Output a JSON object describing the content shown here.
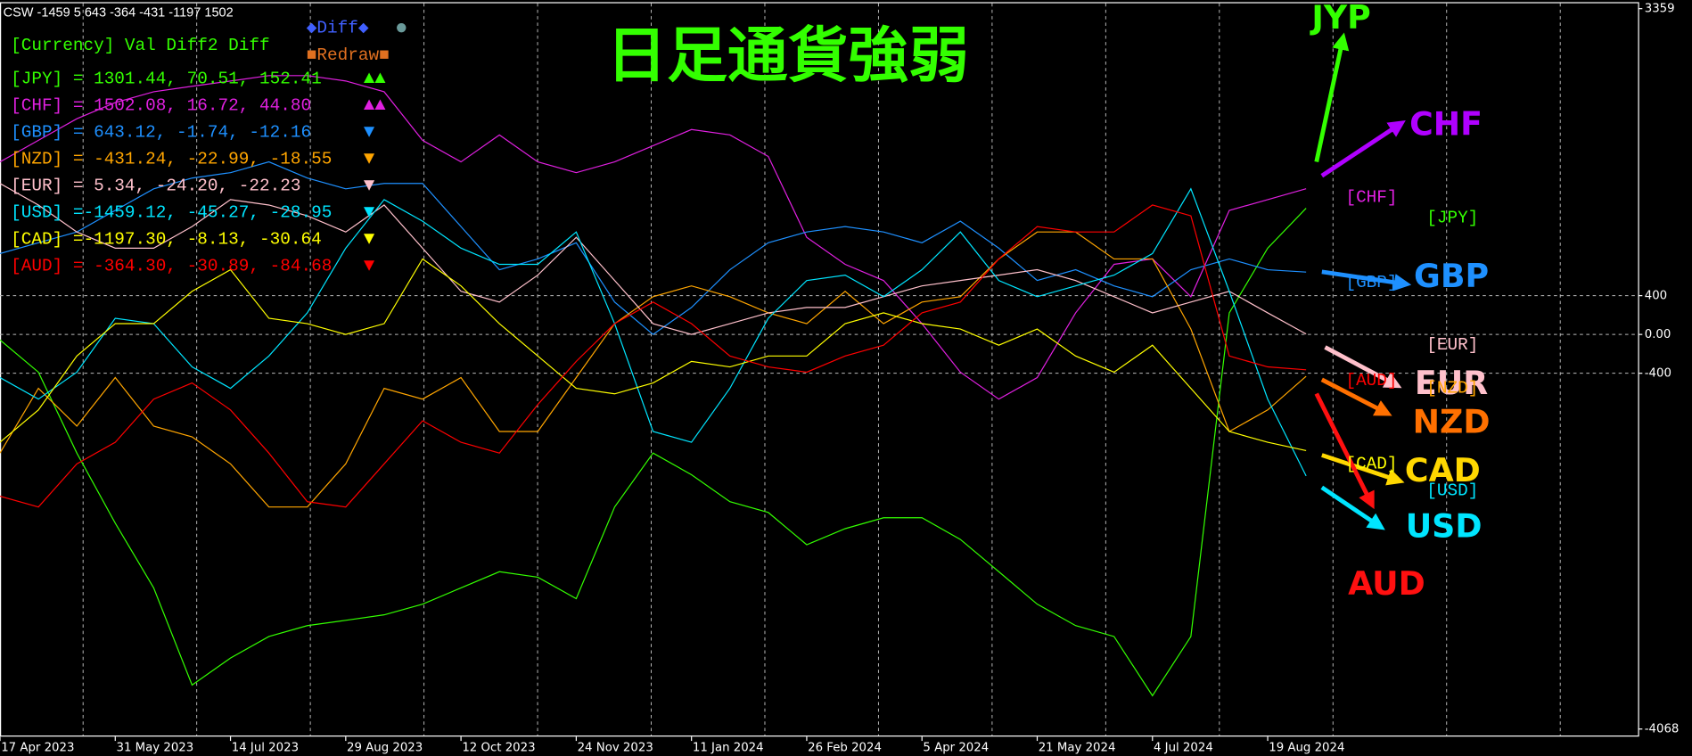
{
  "chart_data": {
    "type": "line",
    "title": "日足通貨強弱",
    "categories": [
      "17 Apr 2023",
      null,
      null,
      "31 May 2023",
      null,
      null,
      "14 Jul 2023",
      null,
      null,
      "29 Aug 2023",
      null,
      null,
      "12 Oct 2023",
      null,
      null,
      "24 Nov 2023",
      null,
      null,
      "11 Jan 2024",
      null,
      null,
      "26 Feb 2024",
      null,
      null,
      "5 Apr 2024",
      null,
      null,
      "21 May 2024",
      null,
      null,
      "4 Jul 2024",
      null,
      null,
      "19 Aug 2024",
      null
    ],
    "ylim": [
      -4068,
      3359
    ],
    "yticks": [
      -4068,
      -400,
      {
        "value": 0,
        "label": "0.00"
      },
      400,
      3359
    ],
    "grid": true,
    "series": [
      {
        "name": "JPY",
        "color": "#33ff00",
        "values": [
          -56,
          -389,
          -1223,
          -1946,
          -2613,
          -3614,
          -3336,
          -3114,
          -3002,
          -2947,
          -2891,
          -2780,
          -2613,
          -2446,
          -2502,
          -2724,
          -1779,
          -1223,
          -1446,
          -1724,
          -1835,
          -2168,
          -2002,
          -1890,
          -1890,
          -2113,
          -2446,
          -2780,
          -3002,
          -3114,
          -3725,
          -3114,
          222,
          890,
          1301
        ]
      },
      {
        "name": "CHF",
        "color": "#e020e0",
        "values": [
          1779,
          2002,
          2224,
          2391,
          2502,
          2558,
          2613,
          2669,
          2669,
          2613,
          2502,
          2002,
          1779,
          2057,
          1779,
          1668,
          1779,
          1946,
          2113,
          2057,
          1835,
          1001,
          723,
          556,
          111,
          -389,
          -667,
          -445,
          222,
          723,
          778,
          389,
          1279,
          1390,
          1502
        ]
      },
      {
        "name": "GBP",
        "color": "#1e90ff",
        "values": [
          834,
          945,
          1056,
          1279,
          1501,
          1612,
          1668,
          1779,
          1612,
          1501,
          1557,
          1557,
          1112,
          667,
          778,
          945,
          334,
          0,
          278,
          667,
          945,
          1056,
          1112,
          1056,
          945,
          1168,
          890,
          556,
          667,
          500,
          389,
          667,
          778,
          667,
          643
        ]
      },
      {
        "name": "NZD",
        "color": "#ffa500",
        "values": [
          -1223,
          -556,
          -945,
          -445,
          -945,
          -1056,
          -1334,
          -1779,
          -1779,
          -1334,
          -556,
          -667,
          -445,
          -1001,
          -1001,
          -445,
          111,
          389,
          500,
          389,
          222,
          111,
          445,
          111,
          334,
          389,
          778,
          1056,
          1056,
          778,
          778,
          56,
          -1001,
          -778,
          -431
        ]
      },
      {
        "name": "EUR",
        "color": "#ffc0cb",
        "values": [
          1557,
          1334,
          1056,
          890,
          890,
          1112,
          1390,
          1334,
          1223,
          1056,
          1334,
          890,
          445,
          334,
          612,
          1001,
          556,
          111,
          0,
          111,
          222,
          278,
          278,
          389,
          500,
          556,
          612,
          667,
          556,
          389,
          222,
          334,
          445,
          222,
          5
        ]
      },
      {
        "name": "USD",
        "color": "#00e5ff",
        "values": [
          -445,
          -667,
          -389,
          167,
          111,
          -334,
          -556,
          -222,
          222,
          890,
          1390,
          1168,
          890,
          723,
          723,
          1056,
          111,
          -1001,
          -1112,
          -556,
          167,
          556,
          612,
          389,
          667,
          1056,
          556,
          389,
          500,
          612,
          834,
          1501,
          445,
          -667,
          -1459
        ]
      },
      {
        "name": "CAD",
        "color": "#ffff00",
        "values": [
          -1112,
          -778,
          -222,
          111,
          111,
          445,
          667,
          167,
          111,
          0,
          111,
          778,
          500,
          111,
          -222,
          -556,
          -612,
          -500,
          -278,
          -334,
          -222,
          -222,
          111,
          222,
          111,
          56,
          -111,
          56,
          -222,
          -389,
          -111,
          -556,
          -1001,
          -1112,
          -1197
        ]
      },
      {
        "name": "AUD",
        "color": "#ff0000",
        "values": [
          -1668,
          -1779,
          -1334,
          -1112,
          -667,
          -500,
          -778,
          -1223,
          -1724,
          -1779,
          -1334,
          -890,
          -1112,
          -1223,
          -723,
          -278,
          111,
          334,
          111,
          -222,
          -334,
          -389,
          -222,
          -111,
          222,
          334,
          778,
          1112,
          1056,
          1056,
          1334,
          1223,
          -222,
          -334,
          -364
        ]
      }
    ]
  },
  "header": "CSW -1459 5 643 -364 -431 -1197 1502",
  "panel": {
    "heading": "[Currency]  Val    Diff2   Diff",
    "diff_button": "◆Diff◆",
    "diff_dot": "●",
    "redraw_button": "■Redraw■",
    "rows": [
      {
        "text": "[JPY] = 1301.44,  70.51, 152.41",
        "arrows": "▲▲"
      },
      {
        "text": "[CHF] = 1502.08,  16.72,  44.80",
        "arrows": "▲▲"
      },
      {
        "text": "[GBP] =  643.12,  -1.74, -12.16",
        "arrows": "▼"
      },
      {
        "text": "[NZD] = -431.24, -22.99, -18.55",
        "arrows": "▼"
      },
      {
        "text": "[EUR] =    5.34, -24.20, -22.23",
        "arrows": "▼"
      },
      {
        "text": "[USD] =-1459.12, -45.27, -28.95",
        "arrows": "▼"
      },
      {
        "text": "[CAD] =-1197.30,  -8.13, -30.64",
        "arrows": "▼"
      },
      {
        "text": "[AUD] = -364.30, -30.89, -84.68",
        "arrows": "▼"
      }
    ]
  },
  "annotations": [
    {
      "text": "JYP",
      "color": "#33ff00"
    },
    {
      "text": "CHF",
      "color": "#b000ff"
    },
    {
      "text": "GBP",
      "color": "#1e90ff"
    },
    {
      "text": "EUR",
      "color": "#ffc0cb"
    },
    {
      "text": "NZD",
      "color": "#ff7000"
    },
    {
      "text": "CAD",
      "color": "#ffd700"
    },
    {
      "text": "USD",
      "color": "#00e5ff"
    },
    {
      "text": "AUD",
      "color": "#ff1010"
    }
  ],
  "tags": [
    {
      "text": "[CHF]",
      "color": "#e020e0"
    },
    {
      "text": "[JPY]",
      "color": "#33ff00"
    },
    {
      "text": "[GBP]",
      "color": "#1e90ff"
    },
    {
      "text": "[EUR]",
      "color": "#ffc0cb"
    },
    {
      "text": "[AUD]",
      "color": "#ff0000"
    },
    {
      "text": "[NZD]",
      "color": "#ffa500"
    },
    {
      "text": "[CAD]",
      "color": "#ffff00"
    },
    {
      "text": "[USD]",
      "color": "#00e5ff"
    }
  ]
}
